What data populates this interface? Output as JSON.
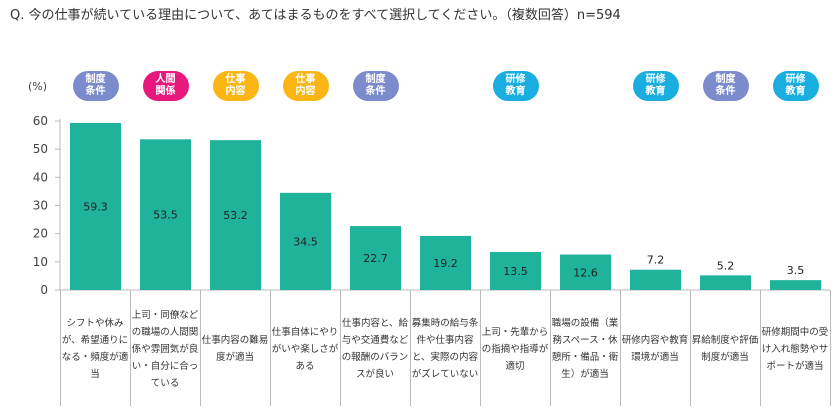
{
  "title": "Q.  今の仕事が続いている理由について、あてはまるものをすべて選択してください。（複数回答）n=594",
  "unit": "(%)",
  "colors": {
    "bar": "#1fb39b",
    "制度条件": "#7b8bcb",
    "人間関係": "#e8197c",
    "仕事内容": "#fbb514",
    "研修教育": "#19ade0"
  },
  "chart_data": {
    "type": "bar",
    "ylim": [
      0,
      60
    ],
    "yticks": [
      0,
      10,
      20,
      30,
      40,
      50,
      60
    ],
    "grid": false,
    "categories": [
      "シフトや休みが、希望通りになる・頻度が適当",
      "上司・同僚などの職場の人間関係や雰囲気が良い・自分に合っている",
      "仕事内容の難易度が適当",
      "仕事自体にやりがいや楽しさがある",
      "仕事内容と、給与や交通費などの報酬のバランスが良い",
      "募集時の給与条件や仕事内容と、実際の内容がズレていない",
      "上司・先輩からの指摘や指導が適切",
      "職場の設備（業務スペース・休憩所・備品・衛生）が適当",
      "研修内容や教育環境が適当",
      "昇給制度や評価制度が適当",
      "研修期間中の受け入れ態勢やサポートが適当"
    ],
    "values": [
      59.3,
      53.5,
      53.2,
      34.5,
      22.7,
      19.2,
      13.5,
      12.6,
      7.2,
      5.2,
      3.5
    ],
    "tags": [
      "制度条件",
      "人間関係",
      "仕事内容",
      "仕事内容",
      "制度条件",
      "",
      "研修教育",
      "",
      "研修教育",
      "制度条件",
      "研修教育"
    ]
  }
}
